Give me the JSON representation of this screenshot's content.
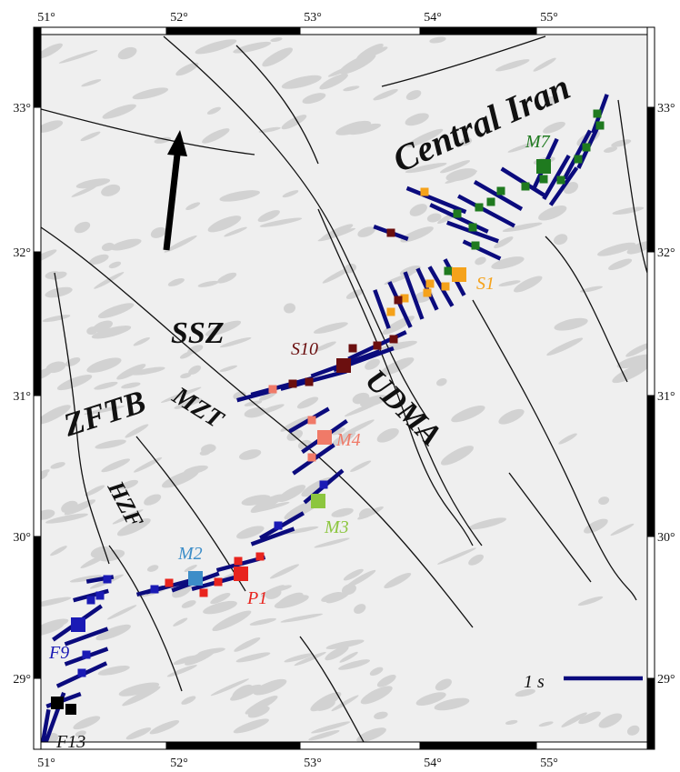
{
  "map": {
    "lon_labels": [
      "51°",
      "52°",
      "53°",
      "54°",
      "55°"
    ],
    "lat_labels": [
      "33°",
      "32°",
      "31°",
      "30°",
      "29°"
    ],
    "regions": [
      "Central Iran",
      "SSZ",
      "ZFTB",
      "MZT",
      "UDMA",
      "HZF"
    ],
    "stations": [
      "M7",
      "S1",
      "S10",
      "M4",
      "M3",
      "M2",
      "P1",
      "F9",
      "F13"
    ],
    "scale_label": "1 s"
  }
}
